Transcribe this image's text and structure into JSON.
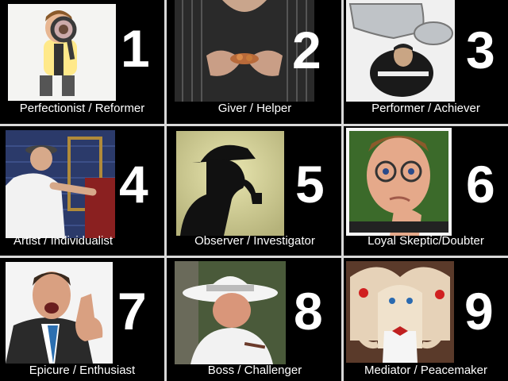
{
  "tiles": [
    {
      "number": "1",
      "label": "Perfectionist / Reformer",
      "subject": "man-with-magnifying-glass"
    },
    {
      "number": "2",
      "label": "Giver / Helper",
      "subject": "hands-holding-coins"
    },
    {
      "number": "3",
      "label": "Performer / Achiever",
      "subject": "hockey-player-with-trophy"
    },
    {
      "number": "4",
      "label": "Artist / Individualist",
      "subject": "man-painting-wall"
    },
    {
      "number": "5",
      "label": "Observer / Investigator",
      "subject": "detective-silhouette"
    },
    {
      "number": "6",
      "label": "Loyal Skeptic/Doubter",
      "subject": "thinking-man-with-glasses"
    },
    {
      "number": "7",
      "label": "Epicure / Enthusiast",
      "subject": "excited-man-thumbs-up"
    },
    {
      "number": "8",
      "label": "Boss / Challenger",
      "subject": "man-in-white-hat-with-cigar"
    },
    {
      "number": "9",
      "label": "Mediator / Peacemaker",
      "subject": "illustrated-faces"
    }
  ],
  "colors": {
    "background": "#000000",
    "text": "#ffffff",
    "divider": "#d9d9d9"
  }
}
